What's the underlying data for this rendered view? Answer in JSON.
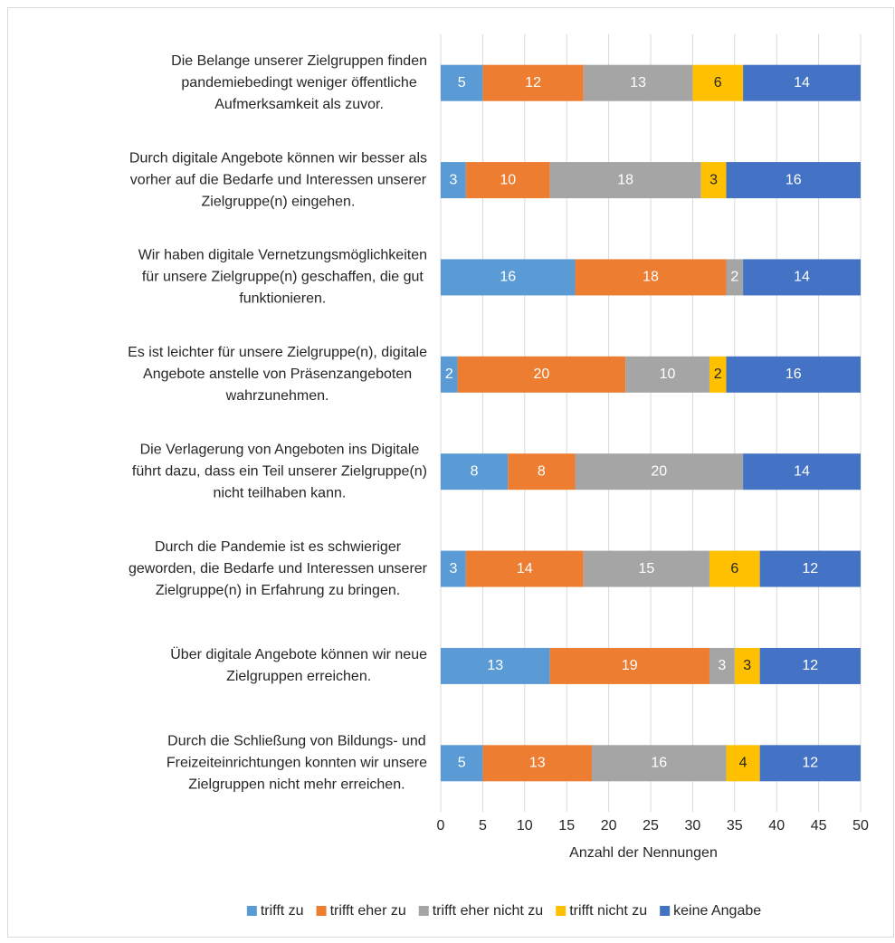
{
  "chart_data": {
    "type": "stacked-bar-horizontal",
    "categories": [
      [
        "Die Belange unserer Zielgruppen finden",
        "pandemiebedingt weniger öffentliche",
        "Aufmerksamkeit als zuvor."
      ],
      [
        "Durch digitale Angebote können wir besser als",
        "vorher auf die Bedarfe und Interessen unserer",
        "Zielgruppe(n) eingehen."
      ],
      [
        "Wir haben digitale Vernetzungsmöglichkeiten",
        "für unsere Zielgruppe(n) geschaffen, die gut",
        "funktionieren."
      ],
      [
        "Es ist leichter für unsere Zielgruppe(n), digitale",
        "Angebote anstelle von Präsenzangeboten",
        "wahrzunehmen."
      ],
      [
        "Die Verlagerung von Angeboten ins Digitale",
        "führt dazu, dass ein Teil unserer Zielgruppe(n)",
        "nicht teilhaben kann."
      ],
      [
        "Durch die Pandemie ist es schwieriger",
        "geworden, die Bedarfe und Interessen unserer",
        "Zielgruppe(n) in Erfahrung zu bringen."
      ],
      [
        "Über digitale Angebote können wir neue",
        "Zielgruppen erreichen."
      ],
      [
        "Durch die Schließung von Bildungs- und",
        "Freizeiteinrichtungen konnten wir unsere",
        "Zielgruppen nicht mehr erreichen."
      ]
    ],
    "series": [
      {
        "name": "trifft zu",
        "color": "#5b9bd5",
        "label_color": "#ffffff",
        "values": [
          5,
          3,
          16,
          2,
          8,
          3,
          13,
          5
        ]
      },
      {
        "name": "trifft eher zu",
        "color": "#ed7d31",
        "label_color": "#ffffff",
        "values": [
          12,
          10,
          18,
          20,
          8,
          14,
          19,
          13
        ]
      },
      {
        "name": "trifft eher nicht zu",
        "color": "#a5a5a5",
        "label_color": "#ffffff",
        "values": [
          13,
          18,
          2,
          10,
          20,
          15,
          3,
          16
        ]
      },
      {
        "name": "trifft nicht zu",
        "color": "#ffc000",
        "label_color": "#262626",
        "values": [
          6,
          3,
          0,
          2,
          0,
          6,
          3,
          4
        ]
      },
      {
        "name": "keine Angabe",
        "color": "#4472c4",
        "label_color": "#ffffff",
        "values": [
          14,
          16,
          14,
          16,
          14,
          12,
          12,
          12
        ]
      }
    ],
    "xlabel": "Anzahl der Nennungen",
    "xlim": [
      0,
      50
    ],
    "xticks": [
      0,
      5,
      10,
      15,
      20,
      25,
      30,
      35,
      40,
      45,
      50
    ],
    "grid": true,
    "legend": "bottom"
  }
}
